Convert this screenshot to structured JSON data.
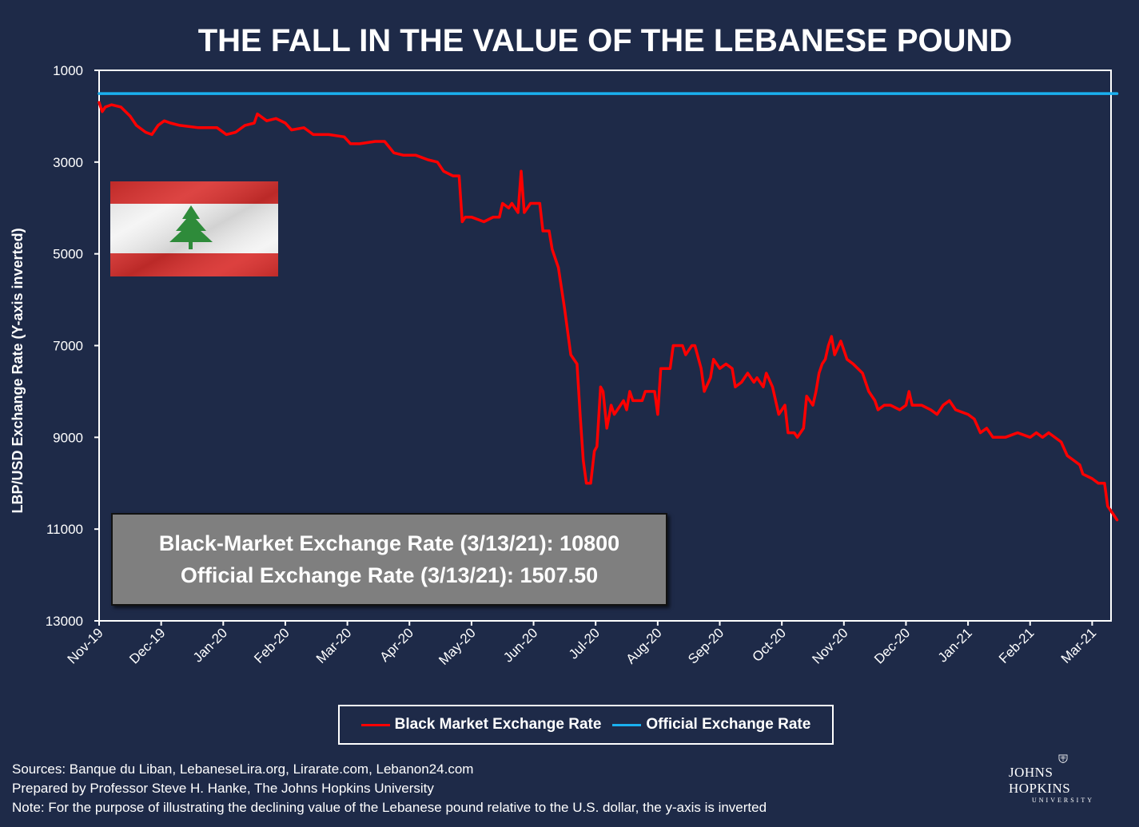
{
  "title": "THE FALL IN THE VALUE OF THE LEBANESE POUND",
  "chart_data": {
    "type": "line",
    "ylabel": "LBP/USD Exchange  Rate (Y-axis inverted)",
    "y_inverted": true,
    "ylim": [
      1000,
      13000
    ],
    "y_ticks": [
      "1000",
      "3000",
      "5000",
      "7000",
      "9000",
      "11000",
      "13000"
    ],
    "x_ticks": [
      "Nov-19",
      "Dec-19",
      "Jan-20",
      "Feb-20",
      "Mar-20",
      "Apr-20",
      "May-20",
      "Jun-20",
      "Jul-20",
      "Aug-20",
      "Sep-20",
      "Oct-20",
      "Nov-20",
      "Dec-20",
      "Jan-21",
      "Feb-21",
      "Mar-21"
    ],
    "x_unit": "months since Nov-19",
    "series": [
      {
        "name": "Black Market Exchange Rate",
        "color": "#ff0000",
        "points": [
          [
            0.0,
            1700
          ],
          [
            0.05,
            1900
          ],
          [
            0.1,
            1800
          ],
          [
            0.2,
            1750
          ],
          [
            0.35,
            1800
          ],
          [
            0.5,
            2000
          ],
          [
            0.6,
            2200
          ],
          [
            0.75,
            2350
          ],
          [
            0.85,
            2400
          ],
          [
            0.95,
            2200
          ],
          [
            1.05,
            2100
          ],
          [
            1.15,
            2150
          ],
          [
            1.3,
            2200
          ],
          [
            1.6,
            2250
          ],
          [
            1.9,
            2250
          ],
          [
            2.05,
            2400
          ],
          [
            2.2,
            2350
          ],
          [
            2.35,
            2200
          ],
          [
            2.5,
            2150
          ],
          [
            2.55,
            1950
          ],
          [
            2.7,
            2100
          ],
          [
            2.85,
            2050
          ],
          [
            3.0,
            2150
          ],
          [
            3.1,
            2300
          ],
          [
            3.3,
            2250
          ],
          [
            3.45,
            2400
          ],
          [
            3.7,
            2400
          ],
          [
            3.95,
            2450
          ],
          [
            4.05,
            2600
          ],
          [
            4.2,
            2600
          ],
          [
            4.45,
            2550
          ],
          [
            4.6,
            2550
          ],
          [
            4.75,
            2800
          ],
          [
            4.9,
            2850
          ],
          [
            5.1,
            2850
          ],
          [
            5.3,
            2950
          ],
          [
            5.45,
            3000
          ],
          [
            5.55,
            3200
          ],
          [
            5.7,
            3300
          ],
          [
            5.8,
            3300
          ],
          [
            5.85,
            4300
          ],
          [
            5.9,
            4200
          ],
          [
            6.0,
            4200
          ],
          [
            6.2,
            4300
          ],
          [
            6.35,
            4200
          ],
          [
            6.45,
            4200
          ],
          [
            6.5,
            3900
          ],
          [
            6.6,
            4000
          ],
          [
            6.65,
            3900
          ],
          [
            6.75,
            4100
          ],
          [
            6.8,
            3200
          ],
          [
            6.85,
            4100
          ],
          [
            6.95,
            3900
          ],
          [
            7.1,
            3900
          ],
          [
            7.15,
            4500
          ],
          [
            7.25,
            4500
          ],
          [
            7.3,
            4900
          ],
          [
            7.4,
            5300
          ],
          [
            7.5,
            6200
          ],
          [
            7.6,
            7200
          ],
          [
            7.7,
            7400
          ],
          [
            7.75,
            8500
          ],
          [
            7.8,
            9500
          ],
          [
            7.85,
            10000
          ],
          [
            7.92,
            10000
          ],
          [
            7.98,
            9300
          ],
          [
            8.02,
            9200
          ],
          [
            8.08,
            7900
          ],
          [
            8.12,
            8000
          ],
          [
            8.18,
            8800
          ],
          [
            8.25,
            8300
          ],
          [
            8.3,
            8500
          ],
          [
            8.4,
            8300
          ],
          [
            8.45,
            8200
          ],
          [
            8.5,
            8400
          ],
          [
            8.55,
            8000
          ],
          [
            8.6,
            8200
          ],
          [
            8.75,
            8200
          ],
          [
            8.8,
            8000
          ],
          [
            8.95,
            8000
          ],
          [
            9.0,
            8500
          ],
          [
            9.05,
            7500
          ],
          [
            9.2,
            7500
          ],
          [
            9.25,
            7000
          ],
          [
            9.4,
            7000
          ],
          [
            9.45,
            7200
          ],
          [
            9.55,
            7000
          ],
          [
            9.6,
            7000
          ],
          [
            9.7,
            7500
          ],
          [
            9.75,
            8000
          ],
          [
            9.85,
            7700
          ],
          [
            9.9,
            7300
          ],
          [
            10.0,
            7500
          ],
          [
            10.1,
            7400
          ],
          [
            10.2,
            7500
          ],
          [
            10.25,
            7900
          ],
          [
            10.35,
            7800
          ],
          [
            10.45,
            7600
          ],
          [
            10.55,
            7800
          ],
          [
            10.6,
            7700
          ],
          [
            10.7,
            7900
          ],
          [
            10.75,
            7600
          ],
          [
            10.85,
            7900
          ],
          [
            10.95,
            8500
          ],
          [
            11.05,
            8300
          ],
          [
            11.1,
            8900
          ],
          [
            11.2,
            8900
          ],
          [
            11.25,
            9000
          ],
          [
            11.35,
            8800
          ],
          [
            11.4,
            8100
          ],
          [
            11.5,
            8300
          ],
          [
            11.55,
            8000
          ],
          [
            11.6,
            7600
          ],
          [
            11.65,
            7400
          ],
          [
            11.7,
            7300
          ],
          [
            11.75,
            7000
          ],
          [
            11.8,
            6800
          ],
          [
            11.85,
            7200
          ],
          [
            11.95,
            6900
          ],
          [
            12.0,
            7100
          ],
          [
            12.05,
            7300
          ],
          [
            12.15,
            7400
          ],
          [
            12.3,
            7600
          ],
          [
            12.4,
            8000
          ],
          [
            12.5,
            8200
          ],
          [
            12.55,
            8400
          ],
          [
            12.65,
            8300
          ],
          [
            12.75,
            8300
          ],
          [
            12.9,
            8400
          ],
          [
            13.0,
            8300
          ],
          [
            13.05,
            8000
          ],
          [
            13.1,
            8300
          ],
          [
            13.25,
            8300
          ],
          [
            13.4,
            8400
          ],
          [
            13.5,
            8500
          ],
          [
            13.6,
            8300
          ],
          [
            13.7,
            8200
          ],
          [
            13.8,
            8400
          ],
          [
            14.0,
            8500
          ],
          [
            14.1,
            8600
          ],
          [
            14.2,
            8900
          ],
          [
            14.3,
            8800
          ],
          [
            14.4,
            9000
          ],
          [
            14.6,
            9000
          ],
          [
            14.8,
            8900
          ],
          [
            15.0,
            9000
          ],
          [
            15.1,
            8900
          ],
          [
            15.2,
            9000
          ],
          [
            15.3,
            8900
          ],
          [
            15.5,
            9100
          ],
          [
            15.6,
            9400
          ],
          [
            15.7,
            9500
          ],
          [
            15.8,
            9600
          ],
          [
            15.85,
            9800
          ],
          [
            16.0,
            9900
          ],
          [
            16.1,
            10000
          ],
          [
            16.2,
            10000
          ],
          [
            16.25,
            10500
          ],
          [
            16.35,
            10700
          ],
          [
            16.4,
            10800
          ]
        ]
      },
      {
        "name": "Official Exchange Rate",
        "color": "#1ab0ef",
        "points": [
          [
            0,
            1507.5
          ],
          [
            16.4,
            1507.5
          ]
        ]
      }
    ],
    "legend_position": "bottom",
    "grid": false
  },
  "info_box": {
    "line1": "Black-Market Exchange Rate (3/13/21): 10800",
    "line2": "Official Exchange Rate (3/13/21): 1507.50"
  },
  "legend": {
    "black_market": "Black Market Exchange Rate",
    "official": "Official Exchange Rate"
  },
  "flag": {
    "icon": "lebanon-flag-icon",
    "colors": {
      "red": "#d9302e",
      "white": "#f4f4f4",
      "cedar": "#2e8b3a"
    }
  },
  "footer": {
    "sources": "Sources: Banque du Liban, LebaneseLira.org, Lirarate.com, Lebanon24.com",
    "prepared": "Prepared by Professor Steve H. Hanke, The Johns Hopkins University",
    "note": "Note: For the purpose of illustrating the declining value of the Lebanese pound relative to the U.S. dollar, the y-axis is inverted"
  },
  "logo": {
    "name": "JOHNS HOPKINS",
    "sub": "UNIVERSITY"
  }
}
